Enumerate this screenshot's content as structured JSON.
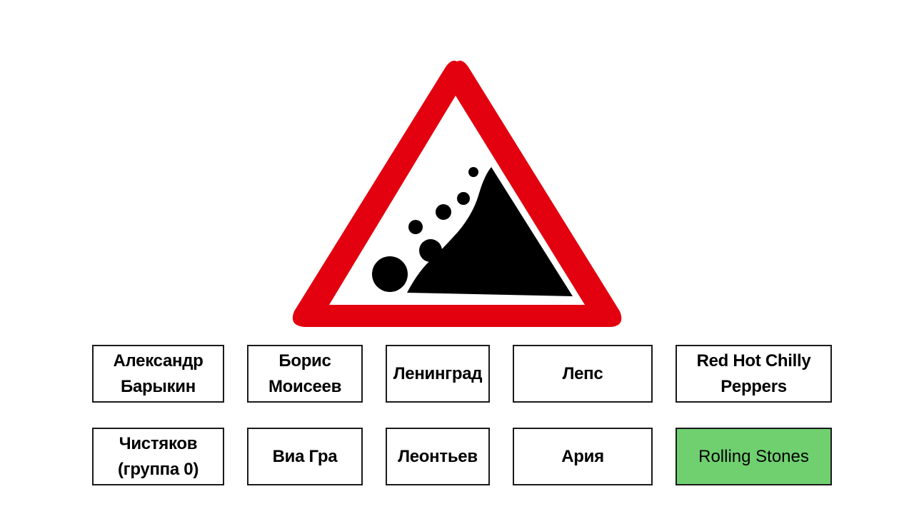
{
  "slide": {
    "sign_icon": "falling-rocks-warning-sign-icon",
    "colors": {
      "sign_border": "#e3000f",
      "sign_fill": "#ffffff",
      "rocks": "#000000",
      "correct_answer_bg": "#70d070",
      "tile_border": "#1a1a1a"
    },
    "answers": [
      {
        "label": "Александр\nБарыкин",
        "correct": false
      },
      {
        "label": "Борис\nМоисеев",
        "correct": false
      },
      {
        "label": "Ленинград",
        "correct": false
      },
      {
        "label": "Лепс",
        "correct": false
      },
      {
        "label": "Red Hot Chilly\nPeppers",
        "correct": false
      },
      {
        "label": "Чистяков\n(группа 0)",
        "correct": false
      },
      {
        "label": "Виа Гра",
        "correct": false
      },
      {
        "label": "Леонтьев",
        "correct": false
      },
      {
        "label": "Ария",
        "correct": false
      },
      {
        "label": "Rolling Stones",
        "correct": true
      }
    ]
  }
}
